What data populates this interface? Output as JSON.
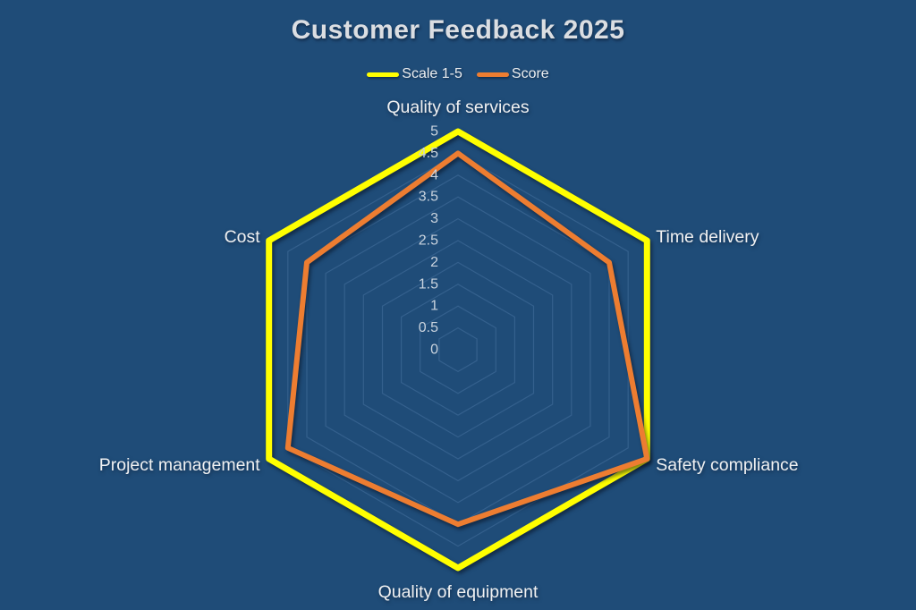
{
  "title": "Customer Feedback 2025",
  "chart_data": {
    "type": "radar",
    "title": "Customer Feedback 2025",
    "categories": [
      "Quality of services",
      "Time delivery",
      "Safety compliance",
      "Quality of equipment",
      "Project management",
      "Cost"
    ],
    "series": [
      {
        "name": "Scale 1-5",
        "color": "#FFFF00",
        "stroke_width": 7,
        "values": [
          5,
          5,
          5,
          5,
          5,
          5
        ]
      },
      {
        "name": "Score",
        "color": "#ED7D31",
        "stroke_width": 6,
        "values": [
          4.5,
          4,
          5,
          4,
          4.5,
          4
        ]
      }
    ],
    "axis": {
      "min": 0,
      "max": 5,
      "step": 0.5,
      "tick_labels": [
        "0",
        "0.5",
        "1",
        "1.5",
        "2",
        "2.5",
        "3",
        "3.5",
        "4",
        "4.5",
        "5"
      ]
    },
    "grid": "concentric-hexagons",
    "spokes": false,
    "legend_position": "top"
  },
  "colors": {
    "background": "#1F4C78",
    "gridline": "#46719E",
    "title_text": "#DBDEE2",
    "category_text": "#F0F1F2",
    "tick_text": "#C9D3DE"
  }
}
